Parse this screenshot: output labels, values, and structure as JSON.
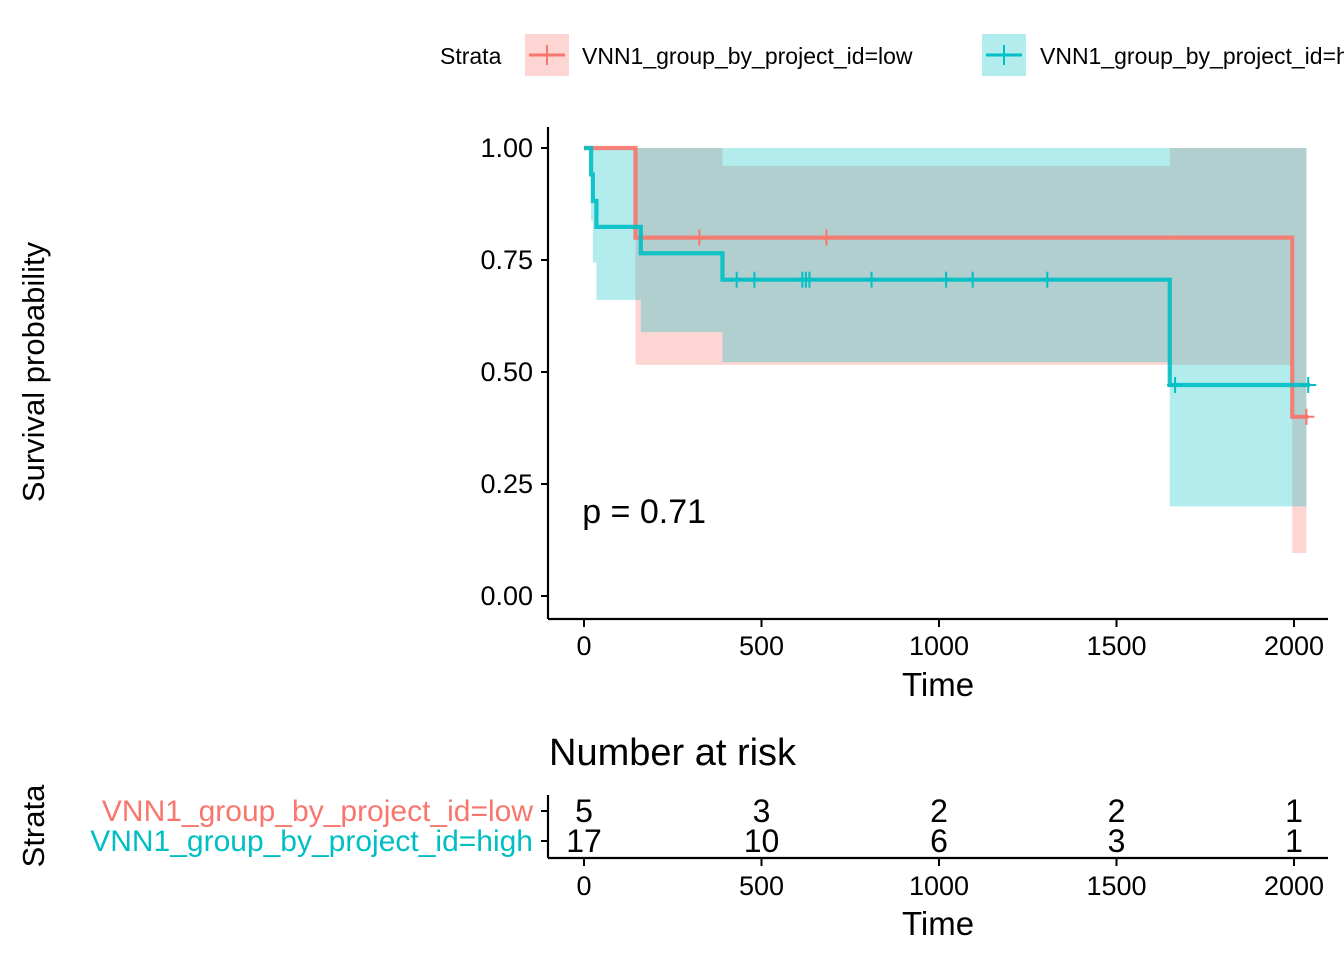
{
  "chart_data": [
    {
      "type": "line",
      "subtype": "kaplan-meier",
      "legend_title": "Strata",
      "legend_position": "top",
      "xlabel": "Time",
      "ylabel": "Survival probability",
      "xlim": [
        -100,
        2100
      ],
      "ylim": [
        -0.05,
        1.05
      ],
      "x_ticks": [
        0,
        500,
        1000,
        1500,
        2000
      ],
      "x_tick_labels": [
        "0",
        "500",
        "1000",
        "1500",
        "2000"
      ],
      "y_ticks": [
        0,
        0.25,
        0.5,
        0.75,
        1.0
      ],
      "y_tick_labels": [
        "0.00",
        "0.25",
        "0.50",
        "0.75",
        "1.00"
      ],
      "annotation": "p = 0.71",
      "annotation_pos": {
        "x": 40,
        "y": 0.19
      },
      "series": [
        {
          "name": "VNN1_group_by_project_id=low",
          "color": "#F8766D",
          "fill_color": "#F8766D",
          "steps": [
            [
              0,
              1.0
            ],
            [
              145,
              0.8
            ],
            [
              1995,
              0.4
            ],
            [
              2040,
              0.4
            ]
          ],
          "ci": [
            {
              "x0": 0,
              "x1": 145,
              "lo": 1.0,
              "hi": 1.0
            },
            {
              "x0": 145,
              "x1": 390,
              "lo": 0.516,
              "hi": 1.0
            },
            {
              "x0": 390,
              "x1": 1650,
              "lo": 0.516,
              "hi": 0.96
            },
            {
              "x0": 1650,
              "x1": 1995,
              "lo": 0.516,
              "hi": 1.0
            },
            {
              "x0": 1995,
              "x1": 2035,
              "lo": 0.096,
              "hi": 1.0
            }
          ],
          "censor_times": [
            325,
            683,
            2035
          ]
        },
        {
          "name": "VNN1_group_by_project_id=high",
          "color": "#00BFC4",
          "fill_color": "#00BFC4",
          "steps": [
            [
              0,
              1.0
            ],
            [
              20,
              0.941
            ],
            [
              25,
              0.882
            ],
            [
              35,
              0.824
            ],
            [
              160,
              0.765
            ],
            [
              390,
              0.706
            ],
            [
              1650,
              0.471
            ],
            [
              2045,
              0.471
            ]
          ],
          "ci": [
            {
              "x0": 0,
              "x1": 20,
              "lo": 1.0,
              "hi": 1.0
            },
            {
              "x0": 20,
              "x1": 25,
              "lo": 0.838,
              "hi": 1.0
            },
            {
              "x0": 25,
              "x1": 35,
              "lo": 0.744,
              "hi": 1.0
            },
            {
              "x0": 35,
              "x1": 160,
              "lo": 0.661,
              "hi": 1.0
            },
            {
              "x0": 160,
              "x1": 390,
              "lo": 0.589,
              "hi": 1.0
            },
            {
              "x0": 390,
              "x1": 1650,
              "lo": 0.522,
              "hi": 1.0
            },
            {
              "x0": 1650,
              "x1": 2035,
              "lo": 0.2,
              "hi": 1.0
            }
          ],
          "censor_times": [
            430,
            480,
            615,
            625,
            635,
            810,
            1020,
            1095,
            1305,
            1665,
            2040
          ]
        }
      ]
    },
    {
      "type": "table",
      "title": "Number at risk",
      "ylabel": "Strata",
      "xlabel": "Time",
      "x_ticks": [
        0,
        500,
        1000,
        1500,
        2000
      ],
      "x_tick_labels": [
        "0",
        "500",
        "1000",
        "1500",
        "2000"
      ],
      "rows": [
        {
          "name": "VNN1_group_by_project_id=low",
          "color": "#F8766D",
          "values": [
            "5",
            "3",
            "2",
            "2",
            "1"
          ]
        },
        {
          "name": "VNN1_group_by_project_id=high",
          "color": "#00BFC4",
          "values": [
            "17",
            "10",
            "6",
            "3",
            "1"
          ]
        }
      ]
    }
  ]
}
